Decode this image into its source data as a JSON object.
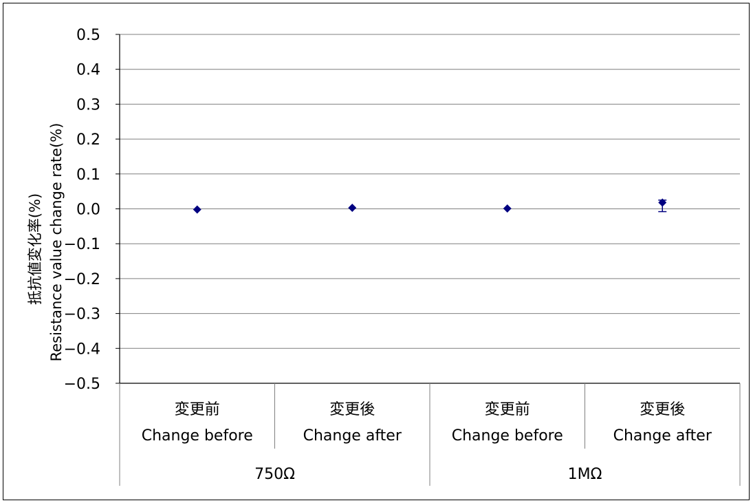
{
  "chart_data": {
    "type": "scatter",
    "ylabel": "抵抗値変化率(%)",
    "ylabel_en": "Resistance value change rate(%)",
    "ylim": [
      -0.5,
      0.5
    ],
    "yticks": [
      "0.5",
      "0.4",
      "0.3",
      "0.2",
      "0.1",
      "0.0",
      "−0.1",
      "−0.2",
      "−0.3",
      "−0.4",
      "−0.5"
    ],
    "grid": true,
    "categories": [
      {
        "jp": "変更前",
        "en": "Change before"
      },
      {
        "jp": "変更後",
        "en": "Change after"
      },
      {
        "jp": "変更前",
        "en": "Change before"
      },
      {
        "jp": "変更後",
        "en": "Change after"
      }
    ],
    "groups": [
      "750Ω",
      "1MΩ"
    ],
    "series": [
      {
        "values": [
          -0.002,
          0.003,
          0.001,
          0.018
        ],
        "err_low": [
          0,
          0,
          0,
          0.026
        ],
        "err_high": [
          0,
          0,
          0,
          0.007
        ]
      }
    ],
    "colors": {
      "marker": "#000080",
      "grid": "#7f7f7f",
      "axis": "#000000"
    }
  }
}
